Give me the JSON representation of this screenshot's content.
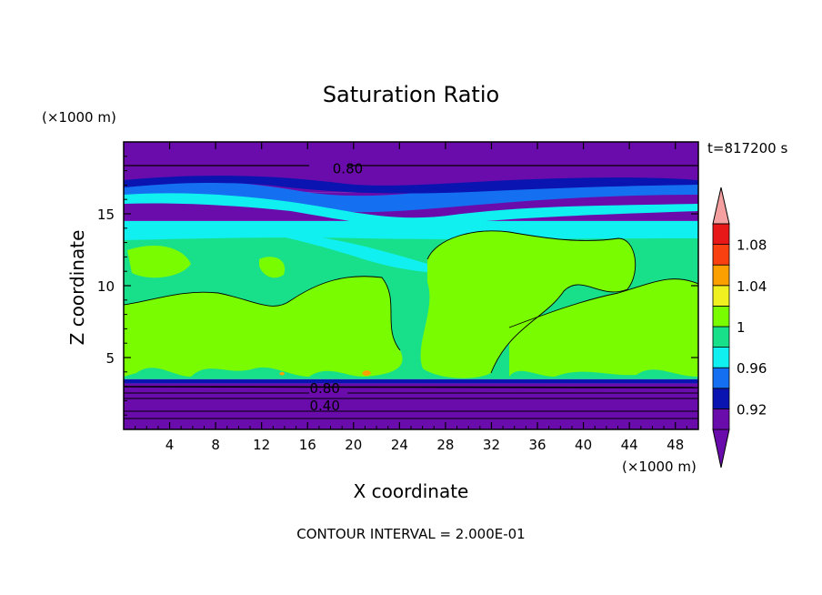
{
  "chart_data": {
    "type": "heatmap",
    "title": "Saturation Ratio",
    "xlabel": "X coordinate",
    "ylabel": "Z coordinate",
    "x_unit": "(×1000 m)",
    "y_unit": "(×1000 m)",
    "time_label": "t=817200 s",
    "footer": "CONTOUR INTERVAL = 2.000E-01",
    "xlim": [
      0,
      50
    ],
    "ylim": [
      0,
      20
    ],
    "x_ticks": [
      4,
      8,
      12,
      16,
      20,
      24,
      28,
      32,
      36,
      40,
      44,
      48
    ],
    "y_ticks": [
      5,
      10,
      15
    ],
    "colorbar": {
      "levels": [
        0.9,
        0.92,
        0.94,
        0.96,
        0.98,
        1.0,
        1.02,
        1.04,
        1.06,
        1.08,
        1.1
      ],
      "tick_labels": [
        "0.92",
        "0.96",
        "1",
        "1.04",
        "1.08"
      ],
      "tick_values": [
        0.92,
        0.96,
        1.0,
        1.04,
        1.08
      ],
      "colors": [
        "#6a0cab",
        "#0a14b0",
        "#1470f0",
        "#10f0f0",
        "#18e08a",
        "#7afc00",
        "#f0f020",
        "#fca000",
        "#f84010",
        "#e81818",
        "#f4a0a0"
      ]
    },
    "contour_labels": [
      {
        "text": "0.80",
        "x": 19.5,
        "y": 18.2
      },
      {
        "text": "0.80",
        "x": 17.5,
        "y": 2.9
      },
      {
        "text": "0.40",
        "x": 17.5,
        "y": 1.7
      }
    ],
    "regions": [
      {
        "zmin": 0,
        "zmax": 3.2,
        "value": 0.4,
        "color": "#6a0cab"
      },
      {
        "zmin": 3.2,
        "zmax": 3.5,
        "value": 0.92,
        "color": "#0a14b0"
      },
      {
        "zmin": 3.5,
        "zmax": 13.5,
        "value": 0.99,
        "color": "#18e08a"
      },
      {
        "zmin": 13.5,
        "zmax": 14.5,
        "value": 0.97,
        "color": "#10f0f0"
      },
      {
        "zmin": 14.5,
        "zmax": 16.5,
        "value": 0.92,
        "color": "#6a0cab"
      },
      {
        "zmin": 16.5,
        "zmax": 20,
        "value": 0.8,
        "color": "#6a0cab"
      }
    ]
  }
}
